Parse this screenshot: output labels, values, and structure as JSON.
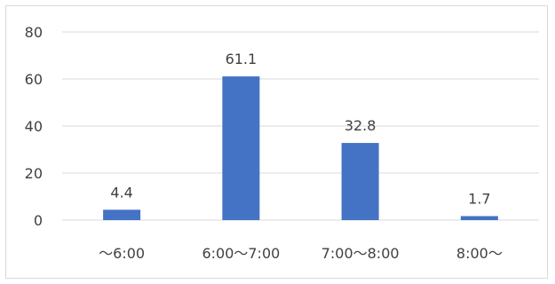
{
  "chart_data": {
    "type": "bar",
    "title": "",
    "xlabel": "",
    "ylabel": "",
    "categories": [
      "～6:00",
      "6:00～7:00",
      "7:00～8:00",
      "8:00～"
    ],
    "values": [
      4.4,
      61.1,
      32.8,
      1.7
    ],
    "data_labels": [
      "4.4",
      "61.1",
      "32.8",
      "1.7"
    ],
    "ylim": [
      0,
      80
    ],
    "yticks": [
      0,
      20,
      40,
      60,
      80
    ],
    "grid": true,
    "legend": "none",
    "bar_color": "#4472c4",
    "gridline_color": "#d9d9d9"
  }
}
